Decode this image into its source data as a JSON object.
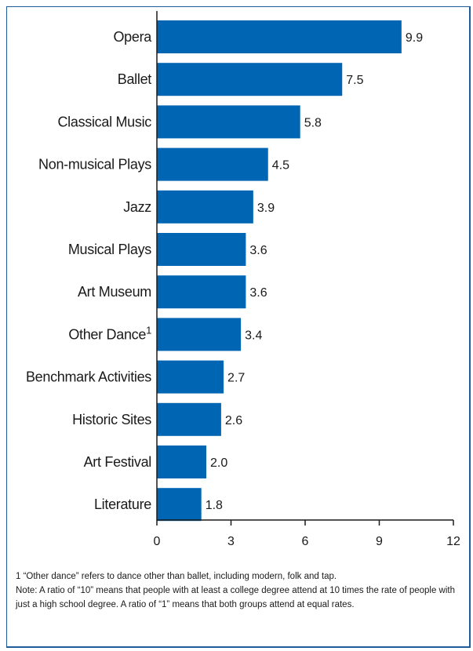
{
  "chart_data": {
    "type": "bar",
    "orientation": "horizontal",
    "categories": [
      "Opera",
      "Ballet",
      "Classical Music",
      "Non-musical Plays",
      "Jazz",
      "Musical Plays",
      "Art Museum",
      "Other Dance",
      "Benchmark Activities",
      "Historic Sites",
      "Art Festival",
      "Literature"
    ],
    "category_superscripts": {
      "Other Dance": "1"
    },
    "values": [
      9.9,
      7.5,
      5.8,
      4.5,
      3.9,
      3.6,
      3.6,
      3.4,
      2.7,
      2.6,
      2.0,
      1.8
    ],
    "value_labels": [
      "9.9",
      "7.5",
      "5.8",
      "4.5",
      "3.9",
      "3.6",
      "3.6",
      "3.4",
      "2.7",
      "2.6",
      "2.0",
      "1.8"
    ],
    "xlim": [
      0,
      12
    ],
    "xticks": [
      0,
      3,
      6,
      9,
      12
    ],
    "xtick_labels": [
      "0",
      "3",
      "6",
      "9",
      "12"
    ],
    "bar_color": "#0066b3",
    "grid": false,
    "legend": false
  },
  "footnotes": {
    "note1": "1  “Other dance” refers to dance other than ballet, including modern, folk and tap.",
    "note2": "Note:  A ratio of “10” means that people with at least a college degree attend at 10 times the rate of people with just a high school degree. A ratio of “1” means that both groups attend at equal rates."
  },
  "colors": {
    "bar": "#0066b3",
    "frame": "#1f5c9a",
    "axis": "#1a1a1a"
  }
}
